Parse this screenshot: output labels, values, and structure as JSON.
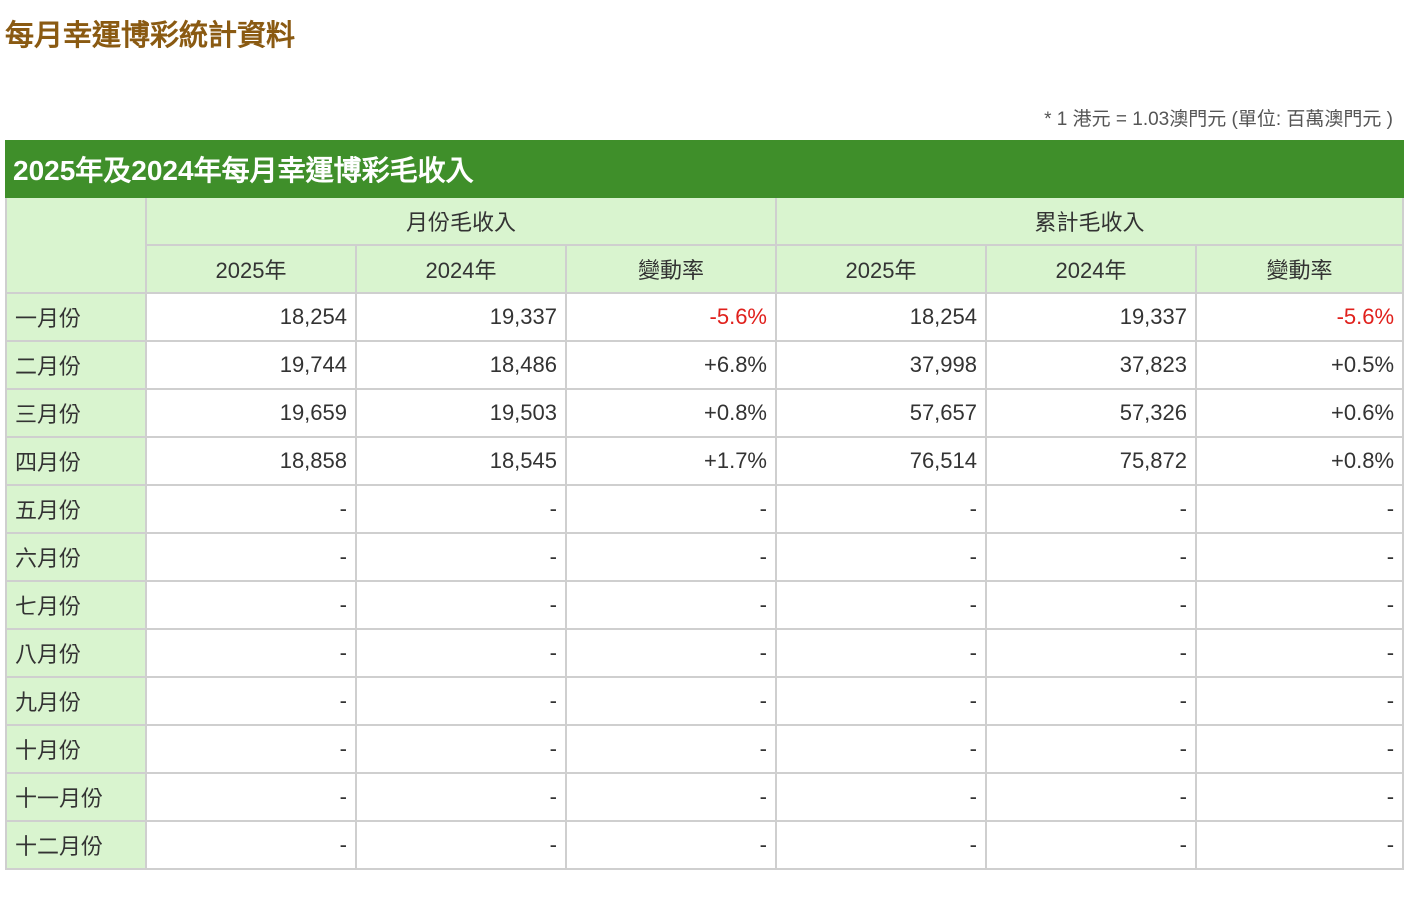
{
  "header": {
    "title": "每月幸運博彩統計資料",
    "note": "* 1 港元 = 1.03澳門元 (單位: 百萬澳門元 )"
  },
  "table": {
    "title": "2025年及2024年每月幸運博彩毛收入",
    "groups": [
      "月份毛收入",
      "累計毛收入"
    ],
    "columns": [
      "2025年",
      "2024年",
      "變動率",
      "2025年",
      "2024年",
      "變動率"
    ],
    "rows": [
      [
        "一月份",
        "18,254",
        "19,337",
        "-5.6%",
        "18,254",
        "19,337",
        "-5.6%"
      ],
      [
        "二月份",
        "19,744",
        "18,486",
        "+6.8%",
        "37,998",
        "37,823",
        "+0.5%"
      ],
      [
        "三月份",
        "19,659",
        "19,503",
        "+0.8%",
        "57,657",
        "57,326",
        "+0.6%"
      ],
      [
        "四月份",
        "18,858",
        "18,545",
        "+1.7%",
        "76,514",
        "75,872",
        "+0.8%"
      ],
      [
        "五月份",
        "-",
        "-",
        "-",
        "-",
        "-",
        "-"
      ],
      [
        "六月份",
        "-",
        "-",
        "-",
        "-",
        "-",
        "-"
      ],
      [
        "七月份",
        "-",
        "-",
        "-",
        "-",
        "-",
        "-"
      ],
      [
        "八月份",
        "-",
        "-",
        "-",
        "-",
        "-",
        "-"
      ],
      [
        "九月份",
        "-",
        "-",
        "-",
        "-",
        "-",
        "-"
      ],
      [
        "十月份",
        "-",
        "-",
        "-",
        "-",
        "-",
        "-"
      ],
      [
        "十一月份",
        "-",
        "-",
        "-",
        "-",
        "-",
        "-"
      ],
      [
        "十二月份",
        "-",
        "-",
        "-",
        "-",
        "-",
        "-"
      ]
    ]
  }
}
